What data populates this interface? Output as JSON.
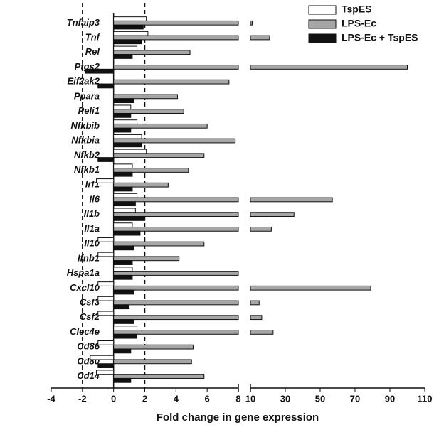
{
  "chart_data": {
    "type": "broken-hbar",
    "x_label": "Fold change in gene expression",
    "categories": [
      "Tnfaip3",
      "Tnf",
      "Rel",
      "Ptgs2",
      "Eif2ak2",
      "Ppara",
      "Peli1",
      "Nfkbib",
      "Nfkbia",
      "Nfkb2",
      "Nfkb1",
      "Irf1",
      "Il6",
      "Il1b",
      "Il1a",
      "Il10",
      "Ifnb1",
      "Hspa1a",
      "Cxcl10",
      "Csf3",
      "Csf2",
      "Clec4e",
      "Cd86",
      "Cd80",
      "Cd14"
    ],
    "series": [
      {
        "name": "TspES",
        "color": "#ffffff",
        "values": [
          2.1,
          2.2,
          1.5,
          null,
          null,
          null,
          1.1,
          1.5,
          1.8,
          2.1,
          1.2,
          -1.1,
          1.5,
          1.4,
          1.2,
          -1.0,
          -1.0,
          1.2,
          -1.0,
          -1.0,
          -1.0,
          1.5,
          -1.0,
          -1.5,
          -1.1
        ]
      },
      {
        "name": "LPS-Ec",
        "color": "#a6a6a6",
        "values": [
          11,
          21,
          4.9,
          100,
          7.4,
          4.1,
          4.5,
          6.0,
          7.8,
          5.8,
          4.8,
          3.5,
          57,
          35,
          22,
          5.8,
          4.2,
          8,
          79,
          15,
          16.5,
          23,
          5.1,
          5.0,
          5.8
        ]
      },
      {
        "name": "LPS-Ec + TspES",
        "color": "#111111",
        "values": [
          1.9,
          1.8,
          1.2,
          -1.8,
          -1.0,
          1.3,
          1.1,
          1.1,
          1.8,
          -1.0,
          1.2,
          1.2,
          1.4,
          2.0,
          1.7,
          1.3,
          1.2,
          1.2,
          1.3,
          1.0,
          1.3,
          1.5,
          1.1,
          -1.0,
          1.1
        ]
      }
    ],
    "xlim": [
      -4,
      8
    ],
    "xticks": [
      -4,
      -2,
      0,
      2,
      4,
      6,
      8
    ],
    "x2lim": [
      10,
      110
    ],
    "x2ticks": [
      10,
      30,
      50,
      70,
      90,
      110
    ],
    "reference_lines": [
      -2,
      2
    ],
    "legend": "top-right"
  }
}
